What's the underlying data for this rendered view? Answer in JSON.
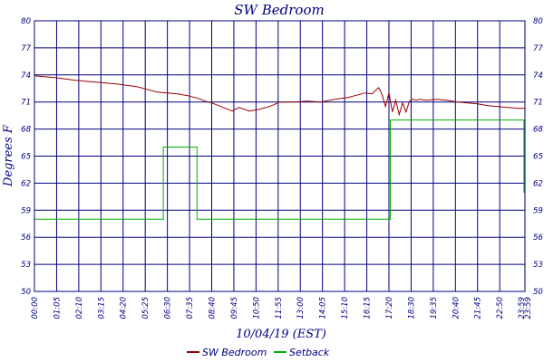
{
  "chart_data": {
    "type": "line",
    "title": "SW Bedroom",
    "xlabel": "10/04/19 (EST)",
    "ylabel": "Degrees F",
    "ylim": [
      50,
      80
    ],
    "y_ticks": [
      50,
      53,
      56,
      59,
      62,
      65,
      68,
      71,
      74,
      77,
      80
    ],
    "y_tick_labels": [
      "50",
      "53",
      "56",
      "59",
      "62",
      "65",
      "68",
      "71",
      "74",
      "77",
      "80"
    ],
    "x_tick_labels": [
      "00:00",
      "01:05",
      "02:10",
      "03:15",
      "04:20",
      "05:25",
      "06:30",
      "07:35",
      "08:40",
      "09:45",
      "10:50",
      "11:55",
      "13:00",
      "14:05",
      "15:10",
      "16:15",
      "17:20",
      "18:30",
      "19:35",
      "20:40",
      "21:45",
      "22:50"
    ],
    "x_end_labels": [
      "23:59",
      "23:59"
    ],
    "grid": true,
    "legend_position": "bottom",
    "colors": {
      "sw_bedroom": "#990000",
      "setback": "#00b000",
      "grid": "#000080",
      "background": "#ffffff"
    },
    "series": [
      {
        "name": "SW Bedroom",
        "x": [
          0,
          60,
          120,
          180,
          240,
          300,
          330,
          360,
          390,
          420,
          450,
          480,
          500,
          520,
          540,
          560,
          580,
          600,
          630,
          660,
          690,
          720,
          760,
          800,
          840,
          880,
          920,
          950,
          970,
          990,
          1010,
          1020,
          1030,
          1040,
          1050,
          1060,
          1070,
          1080,
          1090,
          1100,
          1110,
          1120,
          1130,
          1150,
          1180,
          1210,
          1240,
          1270,
          1300,
          1330,
          1360,
          1390,
          1420,
          1439
        ],
        "y": [
          73.9,
          73.7,
          73.4,
          73.2,
          73.0,
          72.7,
          72.4,
          72.1,
          72.0,
          71.9,
          71.7,
          71.4,
          71.1,
          70.9,
          70.6,
          70.3,
          70.0,
          70.4,
          70.0,
          70.2,
          70.5,
          71.0,
          71.0,
          71.1,
          71.0,
          71.3,
          71.5,
          71.8,
          72.0,
          71.9,
          72.6,
          71.8,
          70.5,
          72.0,
          69.9,
          71.2,
          69.6,
          70.9,
          69.9,
          71.1,
          71.3,
          71.2,
          71.3,
          71.2,
          71.3,
          71.2,
          71.0,
          70.9,
          70.8,
          70.6,
          70.5,
          70.4,
          70.3,
          70.3
        ]
      },
      {
        "name": "Setback",
        "x": [
          0,
          378,
          378,
          477,
          477,
          1044,
          1044,
          1436,
          1436,
          1439
        ],
        "y": [
          58,
          58,
          66,
          66,
          58,
          58,
          69,
          69,
          61,
          61
        ]
      }
    ]
  }
}
